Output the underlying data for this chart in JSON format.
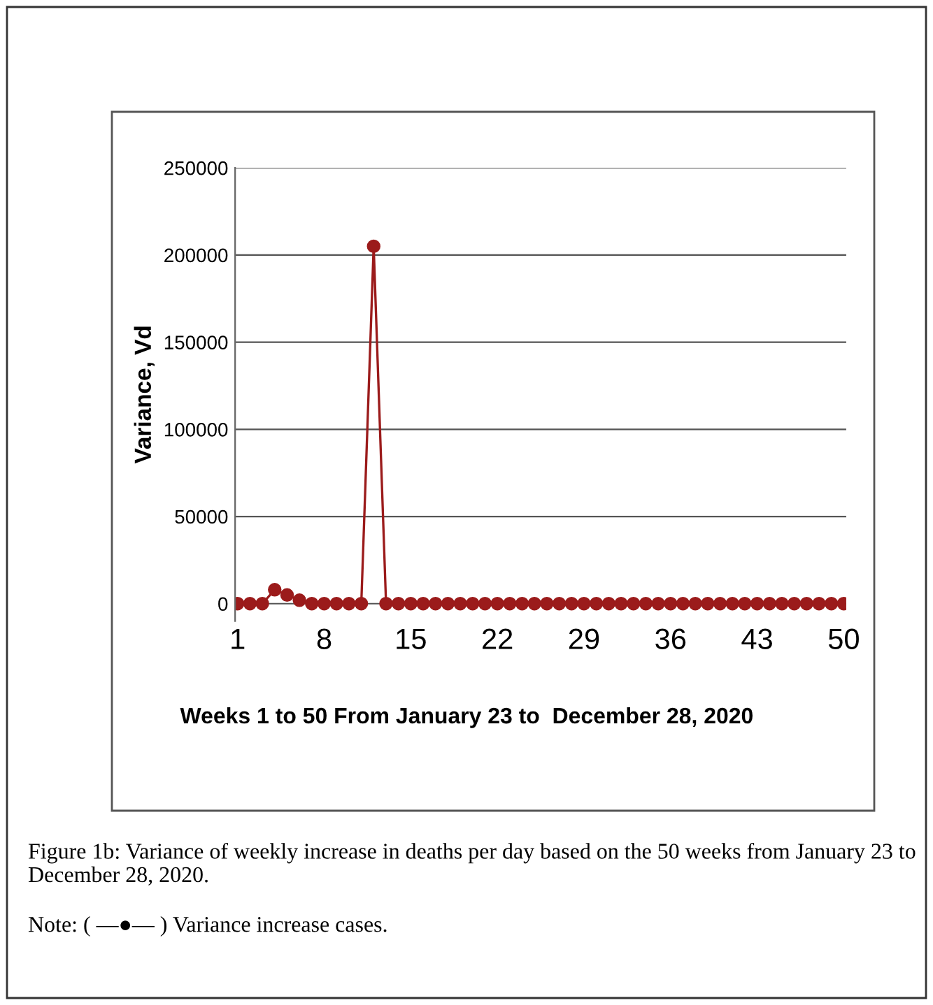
{
  "chart_data": {
    "type": "line",
    "xlabel": "Weeks 1 to 50 From January 23 to  December 28, 2020",
    "ylabel": "Variance, Vd",
    "x": [
      1,
      2,
      3,
      4,
      5,
      6,
      7,
      8,
      9,
      10,
      11,
      12,
      13,
      14,
      15,
      16,
      17,
      18,
      19,
      20,
      21,
      22,
      23,
      24,
      25,
      26,
      27,
      28,
      29,
      30,
      31,
      32,
      33,
      34,
      35,
      36,
      37,
      38,
      39,
      40,
      41,
      42,
      43,
      44,
      45,
      46,
      47,
      48,
      49,
      50
    ],
    "series": [
      {
        "color": "#9b1b1b",
        "values": [
          0,
          0,
          0,
          8000,
          5000,
          2000,
          0,
          0,
          0,
          0,
          0,
          205000,
          0,
          0,
          0,
          0,
          0,
          0,
          0,
          0,
          0,
          0,
          0,
          0,
          0,
          0,
          0,
          0,
          0,
          0,
          0,
          0,
          0,
          0,
          0,
          0,
          0,
          0,
          0,
          0,
          0,
          0,
          0,
          0,
          0,
          0,
          0,
          0,
          0,
          0
        ]
      }
    ],
    "xlim": [
      0.8,
      50.2
    ],
    "ylim": [
      -10000,
      250000
    ],
    "xticks": [
      1,
      8,
      15,
      22,
      29,
      36,
      43,
      50
    ],
    "yticks": [
      0,
      50000,
      100000,
      150000,
      200000,
      250000
    ],
    "grid": "y",
    "marker": "circle",
    "line_style": "solid",
    "legend": false,
    "annotations": [
      "Figure 1b: Variance of weekly increase in deaths per day based on the 50 weeks from January 23 to December 28, 2020.",
      "Note: ( —●— ) Variance increase cases."
    ]
  }
}
